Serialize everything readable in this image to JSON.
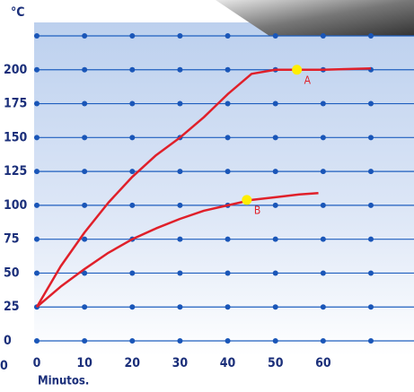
{
  "chart_data": {
    "type": "line",
    "y_label": "°C",
    "x_label": "Minutos.",
    "corner_label": "0",
    "xlim": [
      0,
      70
    ],
    "xticks": [
      0,
      10,
      20,
      30,
      40,
      50,
      60
    ],
    "ylim": [
      0,
      225
    ],
    "yticks": [
      0,
      25,
      50,
      75,
      100,
      125,
      150,
      175,
      200
    ],
    "grid": true,
    "grid_color": "#1f5fbf",
    "dot_color": "#1a56b8",
    "series": [
      {
        "name": "A",
        "color": "#e0202a",
        "x": [
          0,
          5,
          10,
          15,
          20,
          25,
          30,
          35,
          40,
          45,
          50,
          55,
          60,
          70
        ],
        "values": [
          25,
          55,
          80,
          102,
          121,
          137,
          150,
          165,
          182,
          197,
          200,
          200,
          200,
          201
        ],
        "marker": {
          "x": 54.5,
          "y": 200,
          "color": "#ffee00"
        }
      },
      {
        "name": "B",
        "color": "#e0202a",
        "x": [
          0,
          5,
          10,
          15,
          20,
          25,
          30,
          35,
          40,
          45,
          50,
          55,
          59
        ],
        "values": [
          25,
          40,
          53,
          65,
          75,
          83,
          90,
          96,
          100,
          104,
          106,
          108,
          109
        ],
        "marker": {
          "x": 44,
          "y": 104,
          "color": "#ffee00"
        }
      }
    ]
  }
}
